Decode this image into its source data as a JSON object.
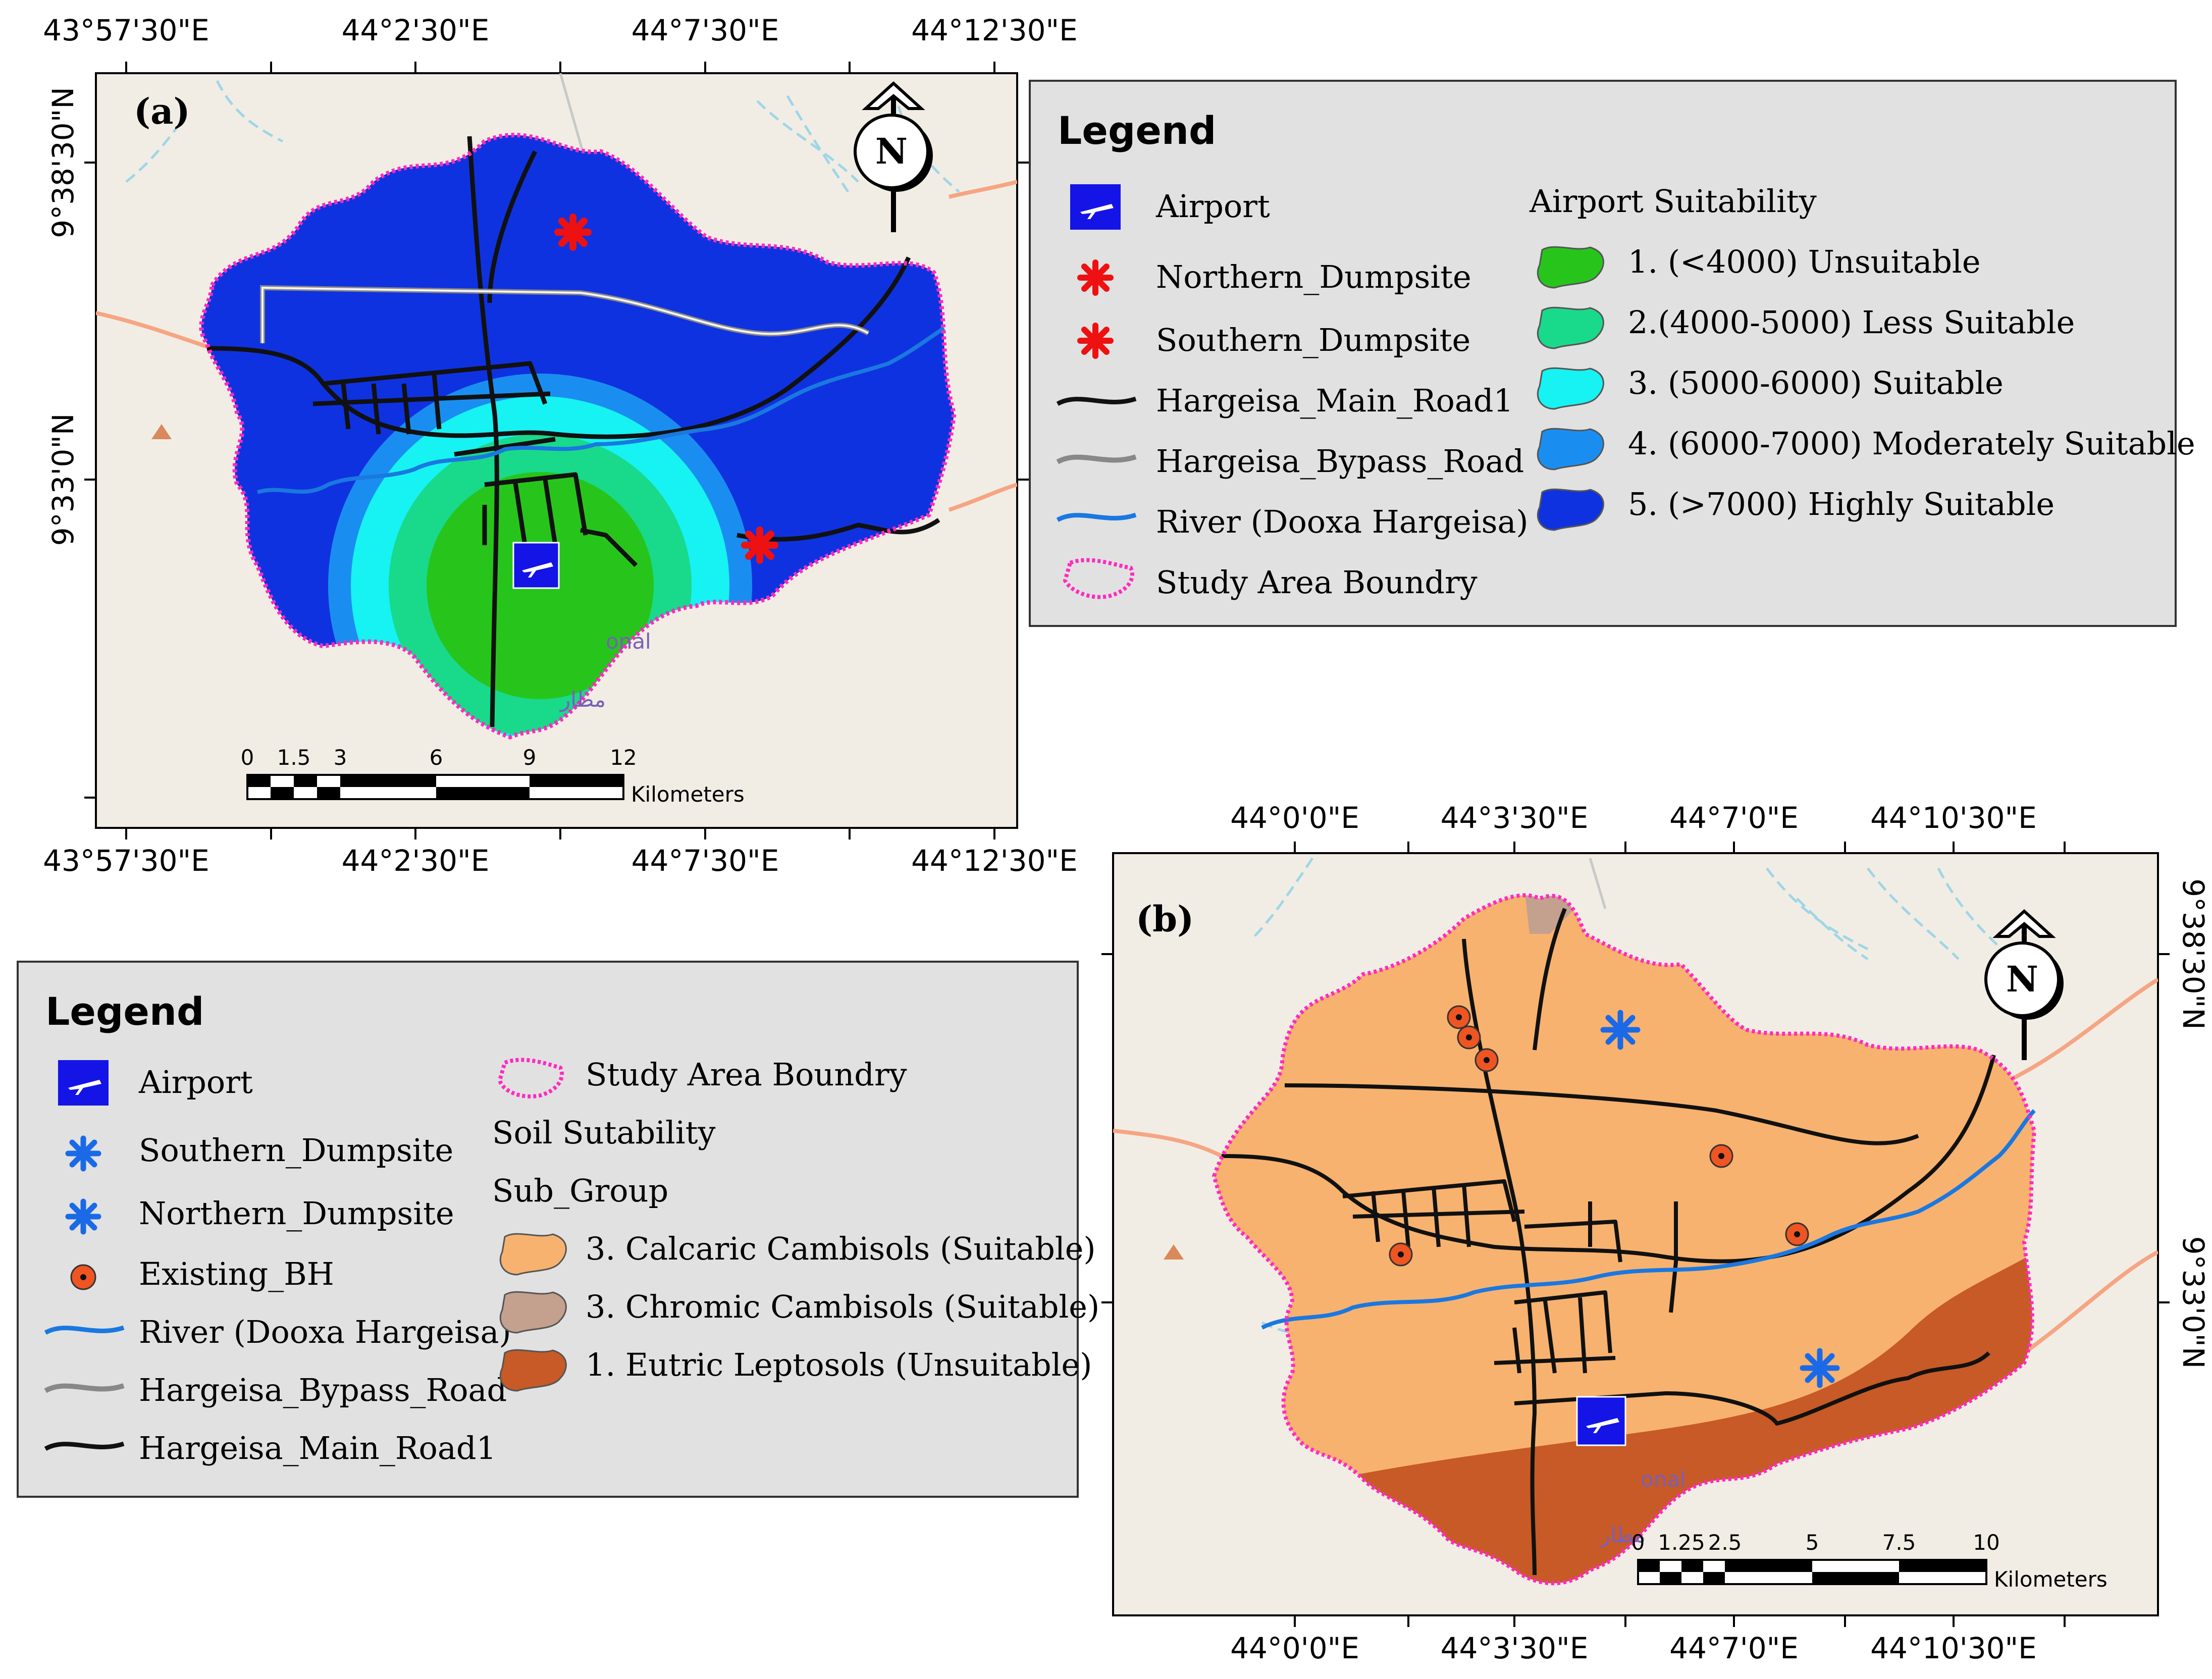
{
  "map_a": {
    "panel_label": "(a)",
    "top_lon_labels": [
      "43°57'30\"E",
      "44°2'30\"E",
      "44°7'30\"E",
      "44°12'30\"E"
    ],
    "bottom_lon_labels": [
      "43°57'30\"E",
      "44°2'30\"E",
      "44°7'30\"E",
      "44°12'30\"E"
    ],
    "left_lat_labels": [
      "9°38'30\"N",
      "9°33'0\"N"
    ],
    "scale_ticks": [
      "0",
      "1.5",
      "3",
      "6",
      "9",
      "12"
    ],
    "scale_unit": "Kilometers",
    "map_text": [
      "onal",
      "مطار"
    ],
    "north_letter": "N"
  },
  "legend_a": {
    "title": "Legend",
    "items": [
      "Airport",
      "Northern_Dumpsite",
      "Southern_Dumpsite",
      "Hargeisa_Main_Road1",
      "Hargeisa_Bypass_Road",
      "River (Dooxa Hargeisa)",
      "Study Area Boundry"
    ],
    "suitability_title": "Airport Suitability",
    "classes": [
      {
        "label": "1. (<4000) Unsuitable",
        "color": "#27c51c"
      },
      {
        "label": "2.(4000-5000) Less Suitable",
        "color": "#19d98b"
      },
      {
        "label": "3. (5000-6000) Suitable",
        "color": "#17f2f2"
      },
      {
        "label": "4. (6000-7000) Moderately Suitable",
        "color": "#1a8ef0"
      },
      {
        "label": "5. (>7000) Highly Suitable",
        "color": "#0f32e0"
      }
    ]
  },
  "map_b": {
    "panel_label": "(b)",
    "top_lon_labels": [
      "44°0'0\"E",
      "44°3'30\"E",
      "44°7'0\"E",
      "44°10'30\"E"
    ],
    "bottom_lon_labels": [
      "44°0'0\"E",
      "44°3'30\"E",
      "44°7'0\"E",
      "44°10'30\"E"
    ],
    "right_lat_labels": [
      "9°38'30\"N",
      "9°33'0\"N"
    ],
    "scale_ticks": [
      "0",
      "1.25",
      "2.5",
      "5",
      "7.5",
      "10"
    ],
    "scale_unit": "Kilometers",
    "map_text": [
      "onal",
      "مطار"
    ],
    "north_letter": "N"
  },
  "legend_b": {
    "title": "Legend",
    "items_left": [
      "Airport",
      "Southern_Dumpsite",
      "Northern_Dumpsite",
      "Existing_BH",
      "River (Dooxa Hargeisa)",
      "Hargeisa_Bypass_Road",
      "Hargeisa_Main_Road1"
    ],
    "boundary_label": "Study Area Boundry",
    "soil_title": "Soil Sutability",
    "sub_group_title": "Sub_Group",
    "classes": [
      {
        "label": "3. Calcaric Cambisols (Suitable)",
        "color": "#f7b26f"
      },
      {
        "label": "3. Chromic Cambisols (Suitable)",
        "color": "#c4a08e"
      },
      {
        "label": "1. Eutric Leptosols (Unsuitable)",
        "color": "#c75a26"
      }
    ]
  },
  "colors": {
    "map_bg": "#f1ede5",
    "legend_bg": "#e1e1e1",
    "boundary": "#ff2ac0",
    "river": "#1a78e0",
    "roads": "#111111",
    "airport": "#1414e6",
    "dumpsite_a": "#ee1111",
    "dumpsite_b": "#1a6ae8",
    "borehole": "#ee5522"
  }
}
